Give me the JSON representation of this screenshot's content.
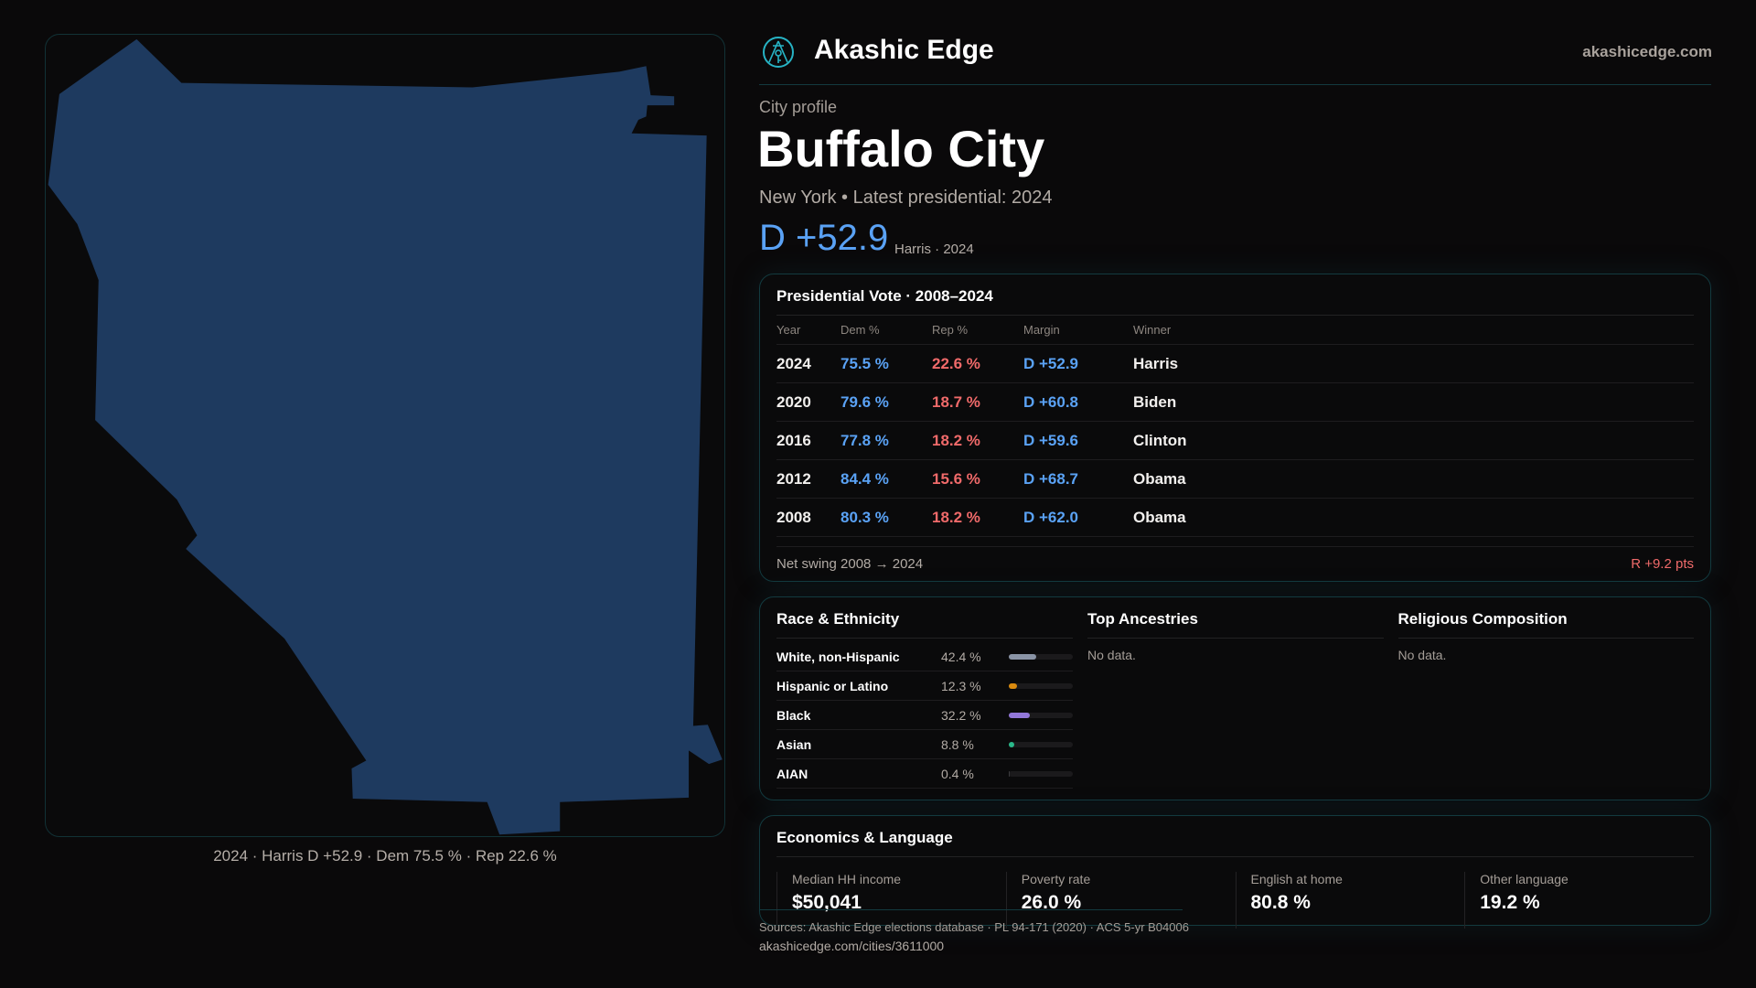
{
  "brand": {
    "name": "Akashic Edge",
    "site": "akashicedge.com",
    "logo_icon": "compass-key-logo"
  },
  "profile": {
    "eyebrow": "City profile",
    "title": "Buffalo City",
    "subtitle": "New York  • Latest presidential: 2024",
    "margin": "D +52.9",
    "margin_sub": "Harris · 2024"
  },
  "map": {
    "caption": "2024 · Harris D +52.9 · Dem 75.5 % · Rep 22.6 %",
    "fill_color": "#1e3a5f"
  },
  "vote": {
    "title": "Presidential Vote · 2008–2024",
    "headers": [
      "Year",
      "Dem %",
      "Rep %",
      "Margin",
      "Winner"
    ],
    "rows": [
      [
        "2024",
        "75.5 %",
        "22.6 %",
        "D +52.9",
        "Harris"
      ],
      [
        "2020",
        "79.6 %",
        "18.7 %",
        "D +60.8",
        "Biden"
      ],
      [
        "2016",
        "77.8 %",
        "18.2 %",
        "D +59.6",
        "Clinton"
      ],
      [
        "2012",
        "84.4 %",
        "15.6 %",
        "D +68.7",
        "Obama"
      ],
      [
        "2008",
        "80.3 %",
        "18.2 %",
        "D +62.0",
        "Obama"
      ]
    ],
    "swing_label": "Net swing 2008 → 2024",
    "swing_value": "R +9.2 pts"
  },
  "race": {
    "title": "Race & Ethnicity",
    "items": [
      {
        "label": "White, non-Hispanic",
        "value": "42.4 %",
        "pct": 42.4,
        "color": "#8a94a6"
      },
      {
        "label": "Hispanic or Latino",
        "value": "12.3 %",
        "pct": 12.3,
        "color": "#d98a0f"
      },
      {
        "label": "Black",
        "value": "32.2 %",
        "pct": 32.2,
        "color": "#9277d9"
      },
      {
        "label": "Asian",
        "value": "8.8 %",
        "pct": 8.8,
        "color": "#2ab88a"
      },
      {
        "label": "AIAN",
        "value": "0.4 %",
        "pct": 0.4,
        "color": "#3a3a3d"
      }
    ]
  },
  "ancestries": {
    "title": "Top Ancestries",
    "empty": "No data."
  },
  "religion": {
    "title": "Religious Composition",
    "empty": "No data."
  },
  "econ": {
    "title": "Economics & Language",
    "stats": [
      {
        "label": "Median HH income",
        "value": "$50,041"
      },
      {
        "label": "Poverty rate",
        "value": "26.0 %"
      },
      {
        "label": "English at home",
        "value": "80.8 %"
      },
      {
        "label": "Other language",
        "value": "19.2 %"
      }
    ]
  },
  "footer": {
    "sources": "Sources: Akashic Edge elections database · PL 94-171 (2020) · ACS 5-yr B04006",
    "url": "akashicedge.com/cities/3611000"
  }
}
